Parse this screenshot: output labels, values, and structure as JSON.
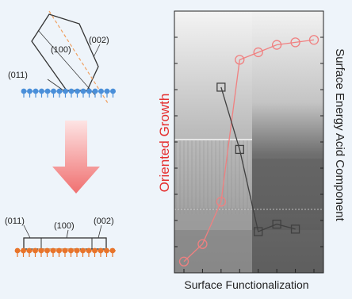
{
  "schematic": {
    "top": {
      "label_011": "(011)",
      "label_100": "(100)",
      "label_002": "(002)"
    },
    "bottom": {
      "label_011": "(011)",
      "label_100": "(100)",
      "label_002": "(002)"
    },
    "colors": {
      "substrate_top": "#4a8fd9",
      "substrate_bottom": "#e8742a",
      "arrow": "#f07878",
      "dash": "#f0a060"
    }
  },
  "chart_data": {
    "type": "line",
    "xlabel": "Surface Functionalization",
    "ylabel_left": "Oriented Growth",
    "ylabel_right": "Surface Energy Acid Component",
    "categories": [
      "",
      "",
      "",
      "",
      "",
      "",
      "",
      ""
    ],
    "series": [
      {
        "color": "#f08080",
        "marker": "circle",
        "axis": "left",
        "values": [
          0.02,
          0.09,
          0.26,
          0.83,
          0.86,
          0.89,
          0.9,
          0.91
        ]
      },
      {
        "color": "#404040",
        "marker": "square",
        "axis": "right",
        "values": [
          null,
          null,
          0.72,
          0.47,
          0.14,
          0.17,
          0.15,
          null
        ]
      }
    ],
    "ylim": [
      0,
      1
    ],
    "axis_colors": {
      "left": "#e53030",
      "right": "#222222"
    },
    "grid": false
  }
}
